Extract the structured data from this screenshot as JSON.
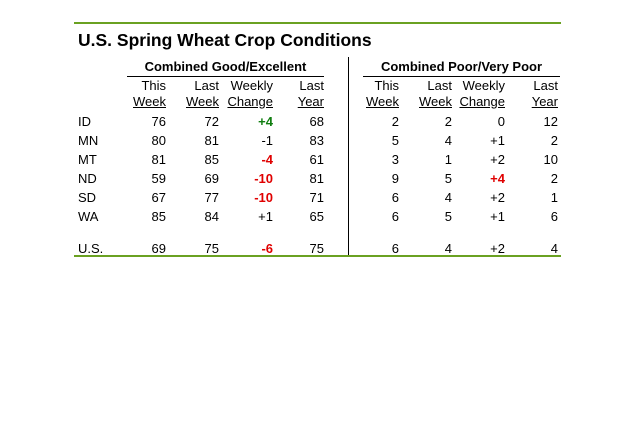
{
  "title": "U.S. Spring Wheat Crop Conditions",
  "groups": {
    "good_excellent": "Combined Good/Excellent",
    "poor_very_poor": "Combined Poor/Very Poor"
  },
  "column_headers": [
    {
      "line1": "This",
      "line2": "Week"
    },
    {
      "line1": "Last",
      "line2": "Week"
    },
    {
      "line1": "Weekly",
      "line2": "Change"
    },
    {
      "line1": "Last",
      "line2": "Year"
    },
    {
      "line1": "This",
      "line2": "Week"
    },
    {
      "line1": "Last",
      "line2": "Week"
    },
    {
      "line1": "Weekly",
      "line2": "Change"
    },
    {
      "line1": "Last",
      "line2": "Year"
    }
  ],
  "rows": [
    {
      "state": "ID",
      "cells": [
        "76",
        "72",
        "+4",
        "68",
        "2",
        "2",
        "0",
        "12"
      ],
      "styles": [
        "",
        "",
        "pos",
        "",
        "",
        "",
        "",
        ""
      ]
    },
    {
      "state": "MN",
      "cells": [
        "80",
        "81",
        "-1",
        "83",
        "5",
        "4",
        "+1",
        "2"
      ],
      "styles": [
        "",
        "",
        "",
        "",
        "",
        "",
        "",
        ""
      ]
    },
    {
      "state": "MT",
      "cells": [
        "81",
        "85",
        "-4",
        "61",
        "3",
        "1",
        "+2",
        "10"
      ],
      "styles": [
        "",
        "",
        "neg",
        "",
        "",
        "",
        "",
        ""
      ]
    },
    {
      "state": "ND",
      "cells": [
        "59",
        "69",
        "-10",
        "81",
        "9",
        "5",
        "+4",
        "2"
      ],
      "styles": [
        "",
        "",
        "neg",
        "",
        "",
        "",
        "neg",
        ""
      ]
    },
    {
      "state": "SD",
      "cells": [
        "67",
        "77",
        "-10",
        "71",
        "6",
        "4",
        "+2",
        "1"
      ],
      "styles": [
        "",
        "",
        "neg",
        "",
        "",
        "",
        "",
        ""
      ]
    },
    {
      "state": "WA",
      "cells": [
        "85",
        "84",
        "+1",
        "65",
        "6",
        "5",
        "+1",
        "6"
      ],
      "styles": [
        "",
        "",
        "",
        "",
        "",
        "",
        "",
        ""
      ]
    },
    {
      "state": "U.S.",
      "cells": [
        "69",
        "75",
        "-6",
        "75",
        "6",
        "4",
        "+2",
        "4"
      ],
      "styles": [
        "",
        "",
        "neg",
        "",
        "",
        "",
        "",
        ""
      ]
    }
  ],
  "colors": {
    "rule": "#6aa121",
    "positive_highlight": "#0f7d0f",
    "negative_highlight": "#e00000"
  }
}
